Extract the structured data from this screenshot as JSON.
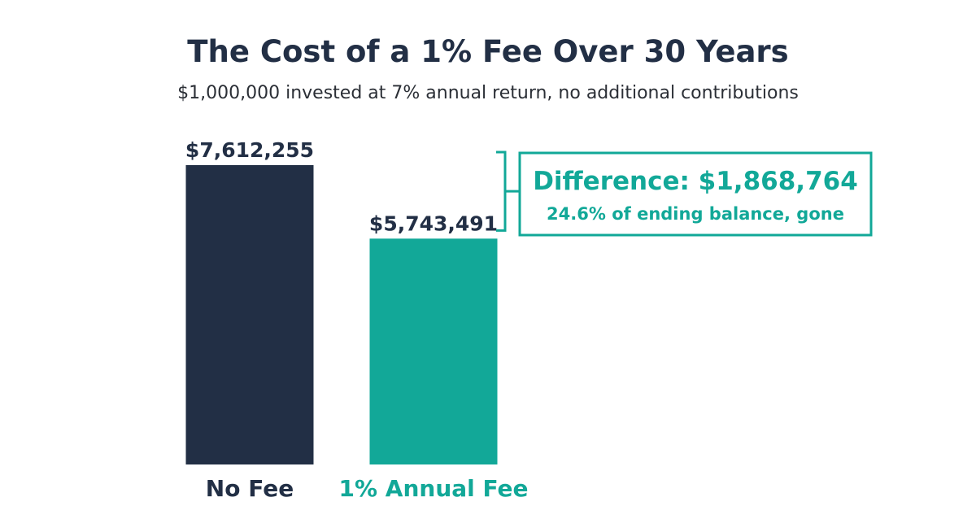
{
  "colors": {
    "navy": "#222f45",
    "teal": "#12a898",
    "subtitle": "#2b2f36"
  },
  "chart_data": {
    "type": "bar",
    "title": "The Cost of a 1% Fee Over 30 Years",
    "subtitle": "$1,000,000 invested at 7% annual return, no additional contributions",
    "categories": [
      "No Fee",
      "1% Annual Fee"
    ],
    "values": [
      7612255,
      5743491
    ],
    "value_labels": [
      "$7,612,255",
      "$5,743,491"
    ],
    "ylim": [
      0,
      7612255
    ],
    "grid": false,
    "annotation": {
      "headline": "Difference: $1,868,764",
      "detail": "24.6% of ending balance, gone"
    }
  }
}
